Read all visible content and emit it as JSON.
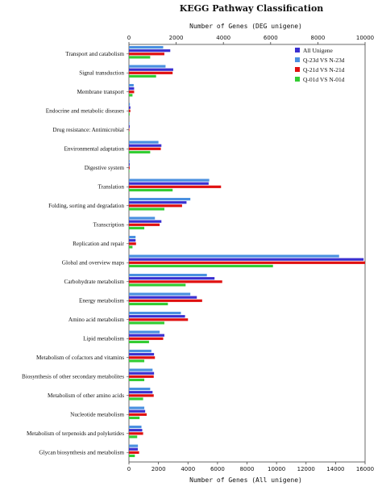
{
  "chart_data": {
    "type": "bar",
    "orientation": "horizontal",
    "title": "KEGG  Pathway Classification",
    "xlabel_top": "Number of Genes (DEG unigene)",
    "xlabel_bottom": "Number of Genes (All unigene)",
    "top_axis": {
      "range": [
        0,
        10000
      ],
      "ticks": [
        "0",
        "2000",
        "4000",
        "6000",
        "8000",
        "10000"
      ]
    },
    "bottom_axis": {
      "range": [
        0,
        16000
      ],
      "ticks": [
        "0",
        "2000",
        "4000",
        "6000",
        "8000",
        "10000",
        "12000",
        "14000",
        "16000"
      ]
    },
    "categories": [
      "Transport and catabolism",
      "Signal transduction",
      "Membrane transport",
      "Endocrine and metabolic diseases",
      "Drug resistance: Antimicrobial",
      "Environmental adaptation",
      "Digestive system",
      "Translation",
      "Folding, sorting and degradation",
      "Transcription",
      "Replication and repair",
      "Global and overview maps",
      "Carbohydrate metabolism",
      "Energy metabolism",
      "Amino acid metabolism",
      "Lipid metabolism",
      "Metabolism of cofactors and vitamins",
      "Biosynthesis of other secondary metabolites",
      "Metabolism of other amino acids",
      "Nucleotide metabolism",
      "Metabolism of terpenoids and polyketides",
      "Glycan biosynthesis and metabolism"
    ],
    "series": [
      {
        "name": "All Unigene",
        "axis": "bottom",
        "color": "#3a2fd0",
        "values": [
          2800,
          3000,
          350,
          100,
          50,
          2200,
          50,
          5400,
          3900,
          2200,
          450,
          15900,
          5800,
          4600,
          3800,
          2400,
          1700,
          1700,
          1600,
          1100,
          900,
          600
        ]
      },
      {
        "name": "Q-23d VS N-23d",
        "axis": "top",
        "color": "#4a90e0",
        "values": [
          1450,
          1550,
          200,
          40,
          20,
          1250,
          30,
          3400,
          2600,
          1100,
          280,
          8900,
          3300,
          2600,
          2200,
          1300,
          950,
          1000,
          900,
          650,
          530,
          380
        ]
      },
      {
        "name": "Q-21d VS N-21d",
        "axis": "top",
        "color": "#e01010",
        "values": [
          1500,
          1850,
          220,
          60,
          20,
          1350,
          30,
          3900,
          2250,
          1300,
          300,
          10000,
          3950,
          3100,
          2500,
          1450,
          1100,
          1050,
          1050,
          750,
          600,
          430
        ]
      },
      {
        "name": "Q-01d VS N-01d",
        "axis": "top",
        "color": "#33cc33",
        "values": [
          900,
          1150,
          150,
          30,
          10,
          900,
          20,
          1850,
          1500,
          650,
          150,
          6100,
          2400,
          1650,
          1500,
          850,
          650,
          650,
          600,
          450,
          350,
          250
        ]
      }
    ],
    "legend_position": "top-right",
    "grid": false
  }
}
